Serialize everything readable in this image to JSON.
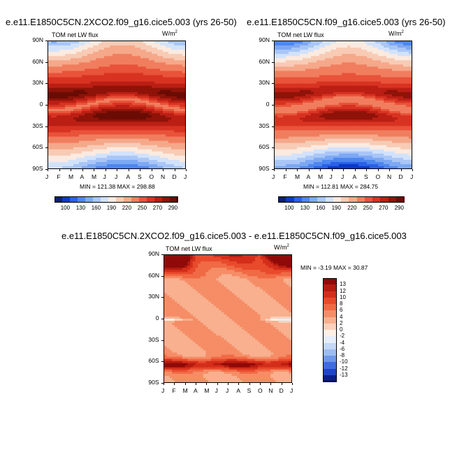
{
  "chart_data": [
    {
      "type": "heatmap",
      "title": "e.e11.E1850C5CN.2XCO2.f09_g16.cice5.003 (yrs 26-50)",
      "subtitle_left": "TOM net LW flux",
      "unit_base": "W/m",
      "unit_sup": "2",
      "months": [
        "J",
        "F",
        "M",
        "A",
        "M",
        "J",
        "J",
        "A",
        "S",
        "O",
        "N",
        "D",
        "J"
      ],
      "lat_labels": [
        "90N",
        "60N",
        "30N",
        "0",
        "30S",
        "60S",
        "90S"
      ],
      "stats": "MIN = 121.38 MAX = 298.88",
      "min": 121.38,
      "max": 298.88,
      "levels": [
        100,
        130,
        160,
        190,
        220,
        250,
        270,
        290
      ],
      "level_labels": [
        "100",
        "130",
        "160",
        "190",
        "220",
        "250",
        "270",
        "290"
      ],
      "colors": [
        "#0a1f78",
        "#0b39c8",
        "#2a60e8",
        "#4d86f0",
        "#7da8f3",
        "#a9c6f7",
        "#d2e2fb",
        "#fbeae0",
        "#f8cbb5",
        "#f5a88a",
        "#f07e5e",
        "#e8533a",
        "#d83322",
        "#bb1f14",
        "#8f1309",
        "#6a0c04"
      ],
      "field_params": {
        "equator_peak": 288,
        "tropics_base": 268,
        "polar_n": 185,
        "polar_s": 150
      }
    },
    {
      "type": "heatmap",
      "title": "e.e11.E1850C5CN.f09_g16.cice5.003 (yrs 26-50)",
      "subtitle_left": "TOM net LW flux",
      "unit_base": "W/m",
      "unit_sup": "2",
      "months": [
        "J",
        "F",
        "M",
        "A",
        "M",
        "J",
        "J",
        "A",
        "S",
        "O",
        "N",
        "D",
        "J"
      ],
      "lat_labels": [
        "90N",
        "60N",
        "30N",
        "0",
        "30S",
        "60S",
        "90S"
      ],
      "stats": "MIN = 112.81 MAX = 284.75",
      "min": 112.81,
      "max": 284.75,
      "levels": [
        100,
        130,
        160,
        190,
        220,
        250,
        270,
        290
      ],
      "level_labels": [
        "100",
        "130",
        "160",
        "190",
        "220",
        "250",
        "270",
        "290"
      ],
      "colors": [
        "#0a1f78",
        "#0b39c8",
        "#2a60e8",
        "#4d86f0",
        "#7da8f3",
        "#a9c6f7",
        "#d2e2fb",
        "#fbeae0",
        "#f8cbb5",
        "#f5a88a",
        "#f07e5e",
        "#e8533a",
        "#d83322",
        "#bb1f14",
        "#8f1309",
        "#6a0c04"
      ],
      "field_params": {
        "equator_peak": 280,
        "tropics_base": 258,
        "polar_n": 160,
        "polar_s": 125
      }
    },
    {
      "type": "heatmap",
      "title": "e.e11.E1850C5CN.2XCO2.f09_g16.cice5.003 - e.e11.E1850C5CN.f09_g16.cice5.003",
      "subtitle_left": "TOM net LW flux",
      "unit_base": "W/m",
      "unit_sup": "2",
      "months": [
        "J",
        "F",
        "M",
        "A",
        "M",
        "J",
        "J",
        "A",
        "S",
        "O",
        "N",
        "D",
        "J"
      ],
      "lat_labels": [
        "90N",
        "60N",
        "30N",
        "0",
        "30S",
        "60S",
        "90S"
      ],
      "stats": "MIN = -3.19 MAX = 30.87",
      "min": -3.19,
      "max": 30.87,
      "levels": [
        13,
        12,
        10,
        8,
        6,
        4,
        2,
        0,
        -2,
        -4,
        -6,
        -8,
        -10,
        -12,
        -13
      ],
      "level_labels": [
        "13",
        "12",
        "10",
        "8",
        "6",
        "4",
        "2",
        "0",
        "-2",
        "-4",
        "-6",
        "-8",
        "-10",
        "-12",
        "-13"
      ],
      "colors": [
        "#8f0a08",
        "#b51c10",
        "#d42e1b",
        "#e84a2c",
        "#f06a45",
        "#f58d66",
        "#f8b08f",
        "#fbd1bb",
        "#fdf0e6",
        "#e6eefb",
        "#c4d7f6",
        "#9dbcf1",
        "#6f98ea",
        "#3f6de0",
        "#1f46c7",
        "#0b1f8c"
      ],
      "field_params": {
        "arctic": 20,
        "antarctic_band": 9,
        "background": 4
      }
    }
  ]
}
